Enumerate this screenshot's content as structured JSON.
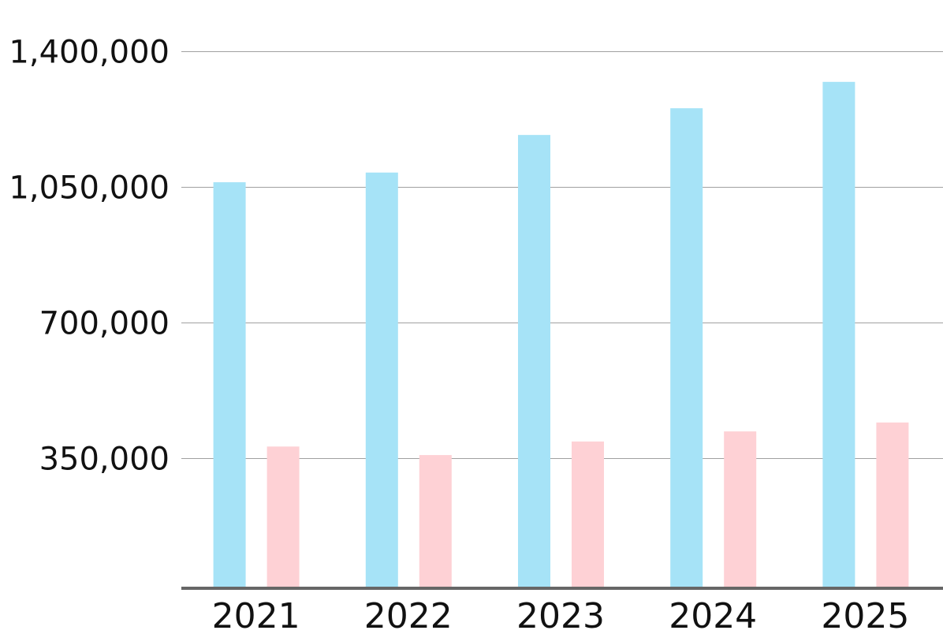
{
  "chart_data": {
    "type": "bar",
    "title": "",
    "xlabel": "",
    "ylabel": "",
    "categories": [
      "2021",
      "2022",
      "2023",
      "2024",
      "2025"
    ],
    "series": [
      {
        "values": [
          1062000,
          1087000,
          1184000,
          1253000,
          1321000
        ],
        "color": "#a6e3f7"
      },
      {
        "values": [
          380000,
          358000,
          393000,
          419000,
          442000
        ],
        "color": "#fed1d5"
      }
    ],
    "ylim": [
      0,
      1400000
    ],
    "yticks": [
      350000,
      700000,
      1050000,
      1400000
    ],
    "ytick_labels": [
      "350,000",
      "700,000",
      "1,050,000",
      "1,400,000"
    ],
    "grid": true,
    "legend": "none"
  }
}
